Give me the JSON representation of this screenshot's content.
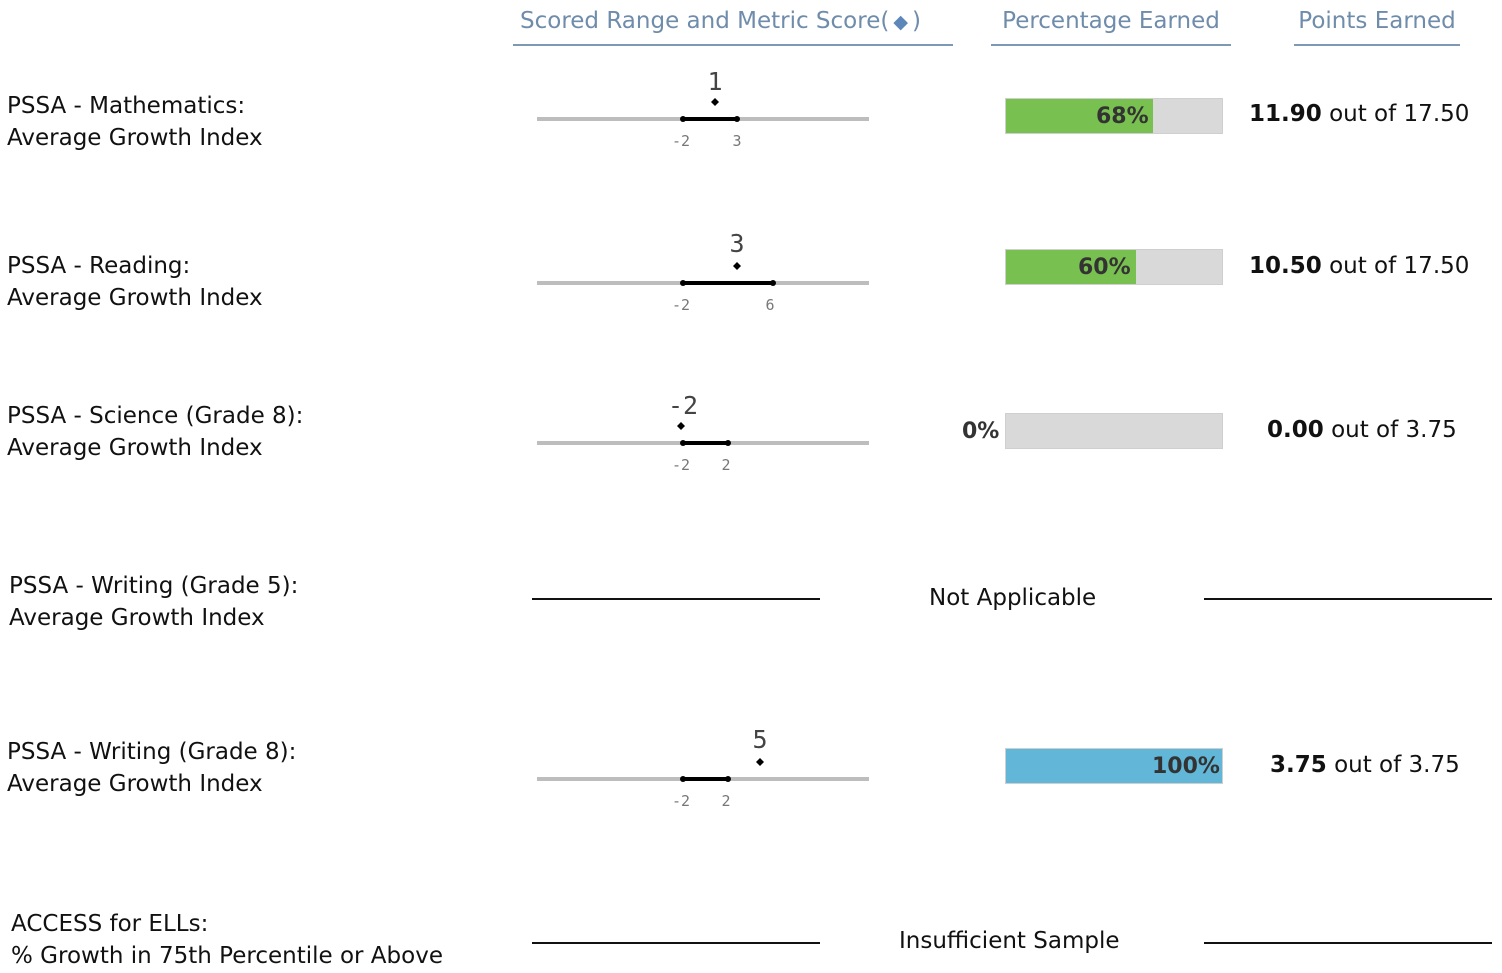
{
  "headers": {
    "scored_range": "Scored Range and Metric Score",
    "diamond": "◆",
    "percentage": "Percentage Earned",
    "points": "Points Earned"
  },
  "colors": {
    "green": "#78c04f",
    "blue": "#62b7d9",
    "bar_bg": "#d9d9d9",
    "header": "#6f8cab"
  },
  "rows": [
    {
      "label1": "PSSA - Mathematics:",
      "label2": "Average Growth Index",
      "range_low": "-2",
      "range_high": "3",
      "score": "1",
      "percent": 68,
      "percent_label": "68%",
      "points_earned": "11.90",
      "out_of": "out of",
      "points_total": "17.50"
    },
    {
      "label1": "PSSA - Reading:",
      "label2": "Average Growth Index",
      "range_low": "-2",
      "range_high": "6",
      "score": "3",
      "percent": 60,
      "percent_label": "60%",
      "points_earned": "10.50",
      "out_of": "out of",
      "points_total": "17.50"
    },
    {
      "label1": "PSSA - Science (Grade 8):",
      "label2": "Average Growth Index",
      "range_low": "-2",
      "range_high": "2",
      "score": "-2",
      "percent": 0,
      "percent_label": "0%",
      "points_earned": "0.00",
      "out_of": "out of",
      "points_total": "3.75"
    },
    {
      "label1": "PSSA - Writing (Grade 5):",
      "label2": "Average Growth Index",
      "status": "Not Applicable"
    },
    {
      "label1": "PSSA - Writing (Grade 8):",
      "label2": "Average Growth Index",
      "range_low": "-2",
      "range_high": "2",
      "score": "5",
      "percent": 100,
      "percent_label": "100%",
      "points_earned": "3.75",
      "out_of": "out of",
      "points_total": "3.75"
    },
    {
      "label1": "ACCESS for ELLs:",
      "label2": "% Growth in 75th Percentile or Above",
      "status": "Insufficient Sample"
    }
  ]
}
